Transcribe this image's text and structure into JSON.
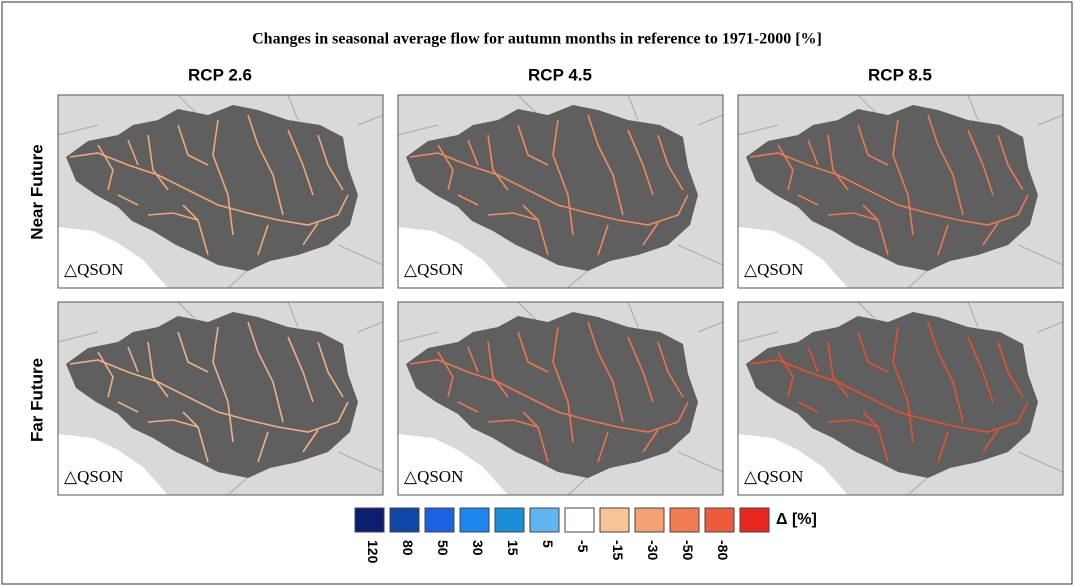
{
  "title": "Changes in seasonal average flow for autumn months in reference to 1971-2000 [%]",
  "columns": [
    "RCP 2.6",
    "RCP 4.5",
    "RCP 8.5"
  ],
  "rows": [
    "Near Future",
    "Far Future"
  ],
  "panels": [
    {
      "label": "△QSON"
    },
    {
      "label": "△QSON"
    },
    {
      "label": "△QSON"
    },
    {
      "label": "△QSON"
    },
    {
      "label": "△QSON"
    },
    {
      "label": "△QSON"
    }
  ],
  "legend": {
    "title": "Δ [%]",
    "labels": [
      "120",
      "80",
      "50",
      "30",
      "15",
      "5",
      "-5",
      "-15",
      "-30",
      "-50",
      "-80"
    ],
    "colors": [
      "#0b1f6e",
      "#0f47a8",
      "#1b62e2",
      "#1d86ef",
      "#1a8fd8",
      "#5fb6f2",
      "#ffffff",
      "#f8c496",
      "#f6a272",
      "#f27b53",
      "#ee5b3c",
      "#e8281e"
    ]
  }
}
